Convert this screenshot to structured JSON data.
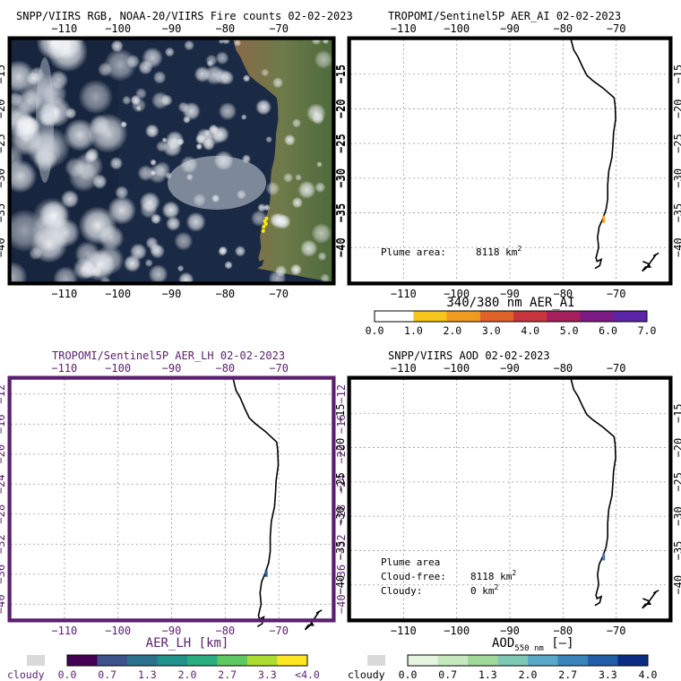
{
  "panels": [
    {
      "title": "SNPP/VIIRS RGB, NOAA-20/VIIRS Fire counts 02-02-2023",
      "map_type": "satellite-rgb",
      "frame_color": "#000000",
      "title_color": "#000000",
      "lon_ticks": [
        -110,
        -100,
        -90,
        -80,
        -70
      ],
      "lat_ticks": [
        -15,
        -20,
        -25,
        -30,
        -35,
        -40
      ],
      "lon_range": [
        -120,
        -60
      ],
      "lat_range": [
        -45,
        -10
      ],
      "annotations": []
    },
    {
      "title": "TROPOMI/Sentinel5P AER_AI 02-02-2023",
      "map_type": "coastline",
      "frame_color": "#000000",
      "title_color": "#000000",
      "lon_ticks": [
        -110,
        -100,
        -90,
        -80,
        -70
      ],
      "lat_ticks": [
        -15,
        -20,
        -25,
        -30,
        -35,
        -40
      ],
      "lon_range": [
        -120,
        -60
      ],
      "lat_range": [
        -45,
        -10
      ],
      "annotations": [
        {
          "label": "Plume area:",
          "value": "8118 km",
          "sup": "2"
        }
      ],
      "plume_color": "#f5a623",
      "colorbar": {
        "title": "340/380 nm  AER_AI",
        "labels": [
          "0.0",
          "1.0",
          "2.0",
          "3.0",
          "4.0",
          "5.0",
          "6.0",
          "7.0"
        ],
        "colors": [
          "#ffffff",
          "#f7c51c",
          "#f09a20",
          "#e0622b",
          "#c8353e",
          "#a41f5c",
          "#7c1b86",
          "#5b24a8"
        ],
        "cloudy": ""
      }
    },
    {
      "title": "TROPOMI/Sentinel5P AER_LH 02-02-2023",
      "map_type": "coastline",
      "frame_color": "#5a1f6e",
      "title_color": "#5a1f6e",
      "lon_ticks": [
        -110,
        -100,
        -90,
        -80,
        -70
      ],
      "lat_ticks": [
        -12,
        -16,
        -20,
        -24,
        -28,
        -32,
        -36,
        -40
      ],
      "lon_range": [
        -120,
        -60
      ],
      "lat_range": [
        -42,
        -10
      ],
      "annotations": [],
      "plume_color": "#2c5aa0",
      "colorbar": {
        "title": "AER_LH [km]",
        "title_sub": "",
        "title_suffix": "",
        "labels": [
          "0.0",
          "0.7",
          "1.3",
          "2.0",
          "2.7",
          "3.3",
          "<4.0"
        ],
        "colors": [
          "#440154",
          "#3b528b",
          "#2c728e",
          "#21918c",
          "#28ae80",
          "#5ec962",
          "#addc30",
          "#fde725"
        ],
        "cloudy": "cloudy",
        "cloudy_color": "#d9d9d9"
      }
    },
    {
      "title": "SNPP/VIIRS AOD 02-02-2023",
      "map_type": "coastline",
      "frame_color": "#000000",
      "title_color": "#000000",
      "lon_ticks": [
        -110,
        -100,
        -90,
        -80,
        -70
      ],
      "lat_ticks": [
        -15,
        -20,
        -25,
        -30,
        -35,
        -40
      ],
      "lon_range": [
        -120,
        -60
      ],
      "lat_range": [
        -45,
        -10
      ],
      "annotations": [
        {
          "label": "Plume area",
          "value": "",
          "sup": ""
        },
        {
          "label": "Cloud-free:",
          "value": "8118 km",
          "sup": "2"
        },
        {
          "label": "Cloudy:",
          "value": "0 km",
          "sup": "2"
        }
      ],
      "plume_color": "#4a7fb5",
      "colorbar": {
        "title": "AOD",
        "title_sub": "550 nm",
        "title_suffix": "[–]",
        "labels": [
          "0.0",
          "0.7",
          "1.3",
          "2.0",
          "2.7",
          "3.3",
          "4.0"
        ],
        "colors": [
          "#e5f5e0",
          "#c7e9c0",
          "#a1d99b",
          "#7fc8b4",
          "#5aa8c8",
          "#3a84bd",
          "#225ea8",
          "#0c2c84"
        ],
        "cloudy": "cloudy",
        "cloudy_color": "#d9d9d9"
      }
    }
  ],
  "coastline": [
    [
      -78.5,
      -10
    ],
    [
      -78.0,
      -11.5
    ],
    [
      -77.2,
      -12.5
    ],
    [
      -76.3,
      -14
    ],
    [
      -75.5,
      -15.2
    ],
    [
      -74.3,
      -16.0
    ],
    [
      -72.5,
      -17.0
    ],
    [
      -71.3,
      -17.8
    ],
    [
      -70.4,
      -18.4
    ],
    [
      -70.2,
      -19.5
    ],
    [
      -70.1,
      -21.5
    ],
    [
      -70.5,
      -23.5
    ],
    [
      -70.6,
      -25.0
    ],
    [
      -70.8,
      -27.0
    ],
    [
      -71.4,
      -29.0
    ],
    [
      -71.6,
      -31.0
    ],
    [
      -71.6,
      -33.0
    ],
    [
      -71.9,
      -34.5
    ],
    [
      -72.6,
      -36.0
    ],
    [
      -73.2,
      -37.0
    ],
    [
      -73.5,
      -38.5
    ],
    [
      -73.3,
      -40.0
    ],
    [
      -73.8,
      -41.5
    ],
    [
      -73.6,
      -42.0
    ],
    [
      -72.8,
      -41.7
    ],
    [
      -73.1,
      -42.6
    ],
    [
      -74.0,
      -43.0
    ]
  ],
  "east_coast": [
    [
      -65.0,
      -42.0
    ],
    [
      -64.0,
      -42.3
    ],
    [
      -63.6,
      -42.8
    ],
    [
      -64.5,
      -42.8
    ],
    [
      -65.1,
      -43.4
    ],
    [
      -64.3,
      -42.9
    ],
    [
      -62.5,
      -41.0
    ],
    [
      -63.0,
      -41.2
    ],
    [
      -62.0,
      -40.8
    ]
  ]
}
